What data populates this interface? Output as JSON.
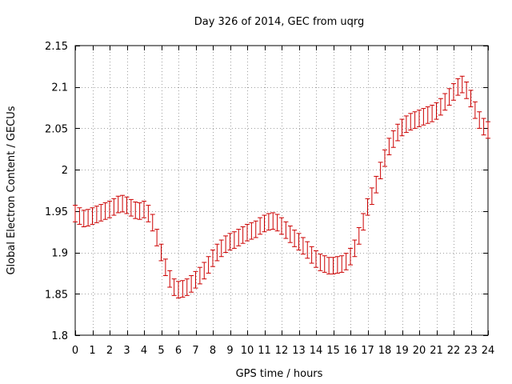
{
  "chart_data": {
    "type": "scatter",
    "title": "Day 326 of 2014, GEC from uqrg",
    "xlabel": "GPS time / hours",
    "ylabel": "Global Electron Content / GECUs",
    "xlim": [
      0,
      24
    ],
    "ylim": [
      1.8,
      2.15
    ],
    "grid": true,
    "legend": "none",
    "color": "#cc0000",
    "error": 0.01,
    "x_ticks": [
      0,
      1,
      2,
      3,
      4,
      5,
      6,
      7,
      8,
      9,
      10,
      11,
      12,
      13,
      14,
      15,
      16,
      17,
      18,
      19,
      20,
      21,
      22,
      23,
      24
    ],
    "x_tick_labels": [
      "0",
      "1",
      "2",
      "3",
      "4",
      "5",
      "6",
      "7",
      "8",
      "9",
      "10",
      "11",
      "12",
      "13",
      "14",
      "15",
      "16",
      "17",
      "18",
      "19",
      "20",
      "21",
      "22",
      "23",
      "24"
    ],
    "y_ticks": [
      1.8,
      1.85,
      1.9,
      1.95,
      2,
      2.05,
      2.1,
      2.15
    ],
    "y_tick_labels": [
      "1.8",
      "1.85",
      "1.9",
      "1.95",
      "2",
      "2.05",
      "2.1",
      "2.15"
    ],
    "x": [
      0,
      0.25,
      0.5,
      0.75,
      1,
      1.25,
      1.5,
      1.75,
      2,
      2.25,
      2.5,
      2.75,
      3,
      3.25,
      3.5,
      3.75,
      4,
      4.25,
      4.5,
      4.75,
      5,
      5.25,
      5.5,
      5.75,
      6,
      6.25,
      6.5,
      6.75,
      7,
      7.25,
      7.5,
      7.75,
      8,
      8.25,
      8.5,
      8.75,
      9,
      9.25,
      9.5,
      9.75,
      10,
      10.25,
      10.5,
      10.75,
      11,
      11.25,
      11.5,
      11.75,
      12,
      12.25,
      12.5,
      12.75,
      13,
      13.25,
      13.5,
      13.75,
      14,
      14.25,
      14.5,
      14.75,
      15,
      15.25,
      15.5,
      15.75,
      16,
      16.25,
      16.5,
      16.75,
      17,
      17.25,
      17.5,
      17.75,
      18,
      18.25,
      18.5,
      18.75,
      19,
      19.25,
      19.5,
      19.75,
      20,
      20.25,
      20.5,
      20.75,
      21,
      21.25,
      21.5,
      21.75,
      22,
      22.25,
      22.5,
      22.75,
      23,
      23.25,
      23.5,
      23.75,
      24
    ],
    "y": [
      1.947,
      1.944,
      1.941,
      1.942,
      1.944,
      1.946,
      1.948,
      1.95,
      1.952,
      1.955,
      1.958,
      1.959,
      1.957,
      1.954,
      1.951,
      1.95,
      1.952,
      1.947,
      1.936,
      1.918,
      1.9,
      1.882,
      1.868,
      1.858,
      1.855,
      1.856,
      1.858,
      1.862,
      1.867,
      1.872,
      1.878,
      1.885,
      1.893,
      1.9,
      1.905,
      1.91,
      1.913,
      1.915,
      1.918,
      1.921,
      1.924,
      1.926,
      1.928,
      1.932,
      1.935,
      1.937,
      1.938,
      1.936,
      1.932,
      1.927,
      1.922,
      1.917,
      1.913,
      1.908,
      1.903,
      1.897,
      1.892,
      1.888,
      1.886,
      1.884,
      1.884,
      1.885,
      1.886,
      1.889,
      1.895,
      1.905,
      1.92,
      1.937,
      1.955,
      1.968,
      1.982,
      1.999,
      2.014,
      2.028,
      2.037,
      2.045,
      2.051,
      2.055,
      2.058,
      2.06,
      2.062,
      2.064,
      2.066,
      2.068,
      2.071,
      2.076,
      2.082,
      2.088,
      2.094,
      2.1,
      2.103,
      2.096,
      2.086,
      2.072,
      2.06,
      2.052,
      2.048
    ]
  }
}
